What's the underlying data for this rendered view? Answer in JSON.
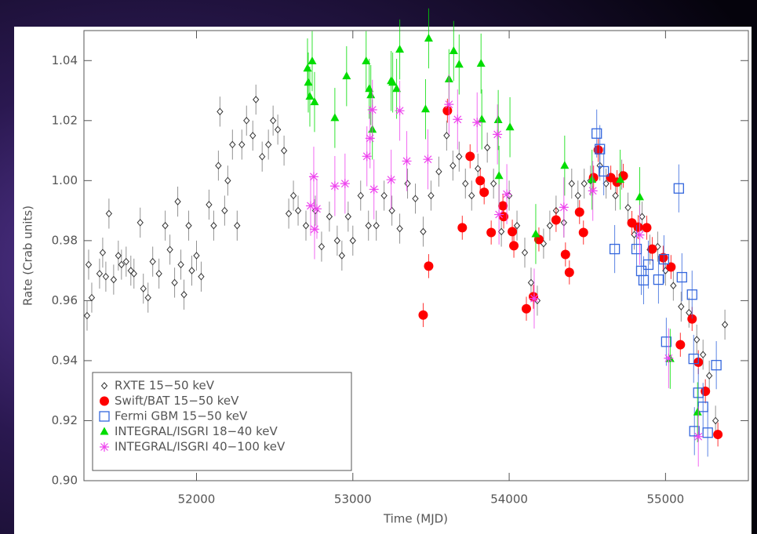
{
  "chart_data": {
    "type": "scatter",
    "x_label": "Time (MJD)",
    "y_label": "Rate (Crab units)",
    "xlim": [
      51280,
      55530
    ],
    "ylim": [
      0.9,
      1.05
    ],
    "xticks": [
      52000,
      53000,
      54000,
      55000
    ],
    "yticks": [
      {
        "value": 0.9,
        "label": "0.90"
      },
      0.92,
      0.94,
      0.96,
      0.98,
      {
        "value": 1.0,
        "label": "1.00"
      },
      1.02,
      1.04
    ],
    "legend": "lower left",
    "series": [
      {
        "name": "RXTE 15−50 keV",
        "color": "#333333",
        "marker": "diamond",
        "error": 0.005,
        "x": [
          51300,
          51310,
          51330,
          51380,
          51400,
          51420,
          51440,
          51470,
          51500,
          51520,
          51550,
          51580,
          51600,
          51640,
          51660,
          51690,
          51720,
          51760,
          51800,
          51830,
          51860,
          51880,
          51900,
          51920,
          51950,
          51970,
          52000,
          52030,
          52080,
          52110,
          52140,
          52150,
          52180,
          52200,
          52230,
          52260,
          52290,
          52320,
          52360,
          52380,
          52420,
          52460,
          52490,
          52520,
          52560,
          52590,
          52620,
          52650,
          52700,
          52760,
          52800,
          52850,
          52900,
          52930,
          52970,
          53000,
          53050,
          53100,
          53150,
          53200,
          53250,
          53300,
          53350,
          53400,
          53450,
          53500,
          53550,
          53600,
          53640,
          53680,
          53720,
          53760,
          53800,
          53860,
          53900,
          53950,
          54000,
          54050,
          54100,
          54140,
          54180,
          54220,
          54260,
          54300,
          54350,
          54400,
          54440,
          54480,
          54520,
          54580,
          54620,
          54680,
          54720,
          54760,
          54800,
          54850,
          54900,
          54950,
          55000,
          55050,
          55100,
          55150,
          55200,
          55240,
          55280,
          55320,
          55380
        ],
        "values": [
          0.955,
          0.972,
          0.961,
          0.969,
          0.976,
          0.968,
          0.989,
          0.967,
          0.975,
          0.972,
          0.973,
          0.97,
          0.969,
          0.986,
          0.964,
          0.961,
          0.973,
          0.969,
          0.985,
          0.977,
          0.966,
          0.993,
          0.972,
          0.962,
          0.985,
          0.97,
          0.975,
          0.968,
          0.992,
          0.985,
          1.005,
          1.023,
          0.99,
          1.0,
          1.012,
          0.985,
          1.012,
          1.02,
          1.015,
          1.027,
          1.008,
          1.012,
          1.02,
          1.017,
          1.01,
          0.989,
          0.995,
          0.99,
          0.985,
          0.99,
          0.978,
          0.988,
          0.98,
          0.975,
          0.988,
          0.98,
          0.995,
          0.985,
          0.985,
          0.995,
          0.99,
          0.984,
          0.999,
          0.994,
          0.983,
          0.995,
          1.003,
          1.015,
          1.005,
          1.008,
          0.999,
          0.995,
          1.004,
          1.011,
          0.999,
          0.983,
          0.995,
          0.985,
          0.976,
          0.966,
          0.96,
          0.979,
          0.985,
          0.99,
          0.986,
          0.999,
          0.995,
          0.999,
          1.0,
          1.005,
          0.999,
          0.995,
          1.002,
          0.991,
          0.982,
          0.988,
          0.977,
          0.978,
          0.97,
          0.965,
          0.958,
          0.956,
          0.947,
          0.942,
          0.935,
          0.92,
          0.952
        ]
      },
      {
        "name": "Swift/BAT 15−50 keV",
        "color": "#ff0000",
        "marker": "circle",
        "error": 0.004,
        "x": [
          53450,
          53485,
          53605,
          53700,
          53750,
          53815,
          53840,
          53885,
          53960,
          53965,
          54020,
          54030,
          54110,
          54155,
          54190,
          54300,
          54360,
          54385,
          54450,
          54475,
          54540,
          54570,
          54650,
          54690,
          54730,
          54785,
          54825,
          54880,
          54915,
          54985,
          55035,
          55095,
          55170,
          55210,
          55255,
          55335
        ],
        "values": [
          0.9552,
          0.9715,
          1.0233,
          0.9843,
          1.0081,
          1.0,
          0.9961,
          0.9827,
          0.9916,
          0.988,
          0.983,
          0.9783,
          0.9573,
          0.9613,
          0.9804,
          0.9869,
          0.9754,
          0.9694,
          0.9895,
          0.9827,
          1.001,
          1.0102,
          1.001,
          0.9995,
          1.0016,
          0.9859,
          0.9845,
          0.9843,
          0.9772,
          0.9743,
          0.9712,
          0.9453,
          0.9539,
          0.9395,
          0.9298,
          0.9154
        ]
      },
      {
        "name": "Fermi GBM 15−50 keV",
        "color": "#3366dd",
        "marker": "square",
        "error": 0.008,
        "x": [
          54560,
          54580,
          54605,
          54675,
          54815,
          54845,
          54860,
          54890,
          54955,
          54990,
          55005,
          55085,
          55105,
          55170,
          55180,
          55185,
          55210,
          55240,
          55270,
          55325
        ],
        "values": [
          1.0157,
          1.0105,
          1.0031,
          0.9772,
          0.9772,
          0.9699,
          0.9668,
          0.972,
          0.967,
          0.9738,
          0.9463,
          0.9974,
          0.9678,
          0.962,
          0.9406,
          0.9165,
          0.9293,
          0.9246,
          0.916,
          0.9385
        ]
      },
      {
        "name": "INTEGRAL/ISGRI 18−40 keV",
        "color": "#00dd00",
        "marker": "triangle",
        "error": 0.01,
        "x": [
          52710,
          52715,
          52725,
          52740,
          52755,
          52885,
          52960,
          53085,
          53105,
          53115,
          53125,
          53245,
          53255,
          53280,
          53300,
          53465,
          53485,
          53615,
          53645,
          53680,
          53820,
          53825,
          53930,
          53935,
          54005,
          54170,
          54355,
          54530,
          54710,
          54835,
          55030,
          55205
        ],
        "values": [
          1.0374,
          1.0327,
          1.028,
          1.0398,
          1.0262,
          1.0209,
          1.0348,
          1.0398,
          1.0306,
          1.0285,
          1.017,
          1.0332,
          1.0327,
          1.0306,
          1.0437,
          1.0238,
          1.0474,
          1.0338,
          1.0432,
          1.0387,
          1.039,
          1.0204,
          1.0202,
          1.0016,
          1.0178,
          0.9822,
          1.005,
          1.0003,
          1.0003,
          0.9945,
          0.9406,
          0.9228
        ]
      },
      {
        "name": "INTEGRAL/ISGRI 40−100 keV",
        "color": "#ee44ee",
        "marker": "asterisk",
        "error": 0.01,
        "x": [
          52730,
          52750,
          52755,
          52770,
          52885,
          52950,
          53090,
          53110,
          53125,
          53135,
          53245,
          53300,
          53345,
          53480,
          53615,
          53670,
          53795,
          53925,
          53935,
          53985,
          54160,
          54350,
          54535,
          54835,
          55020,
          55210
        ],
        "values": [
          0.9916,
          1.0013,
          0.9838,
          0.9906,
          0.9982,
          0.999,
          1.0081,
          1.0141,
          1.0236,
          0.9971,
          1.0003,
          1.0233,
          1.0065,
          1.0071,
          1.0254,
          1.0204,
          1.0194,
          1.0154,
          0.9887,
          0.9955,
          0.9607,
          0.9911,
          0.9966,
          0.9819,
          0.9408,
          0.9147
        ]
      }
    ]
  }
}
